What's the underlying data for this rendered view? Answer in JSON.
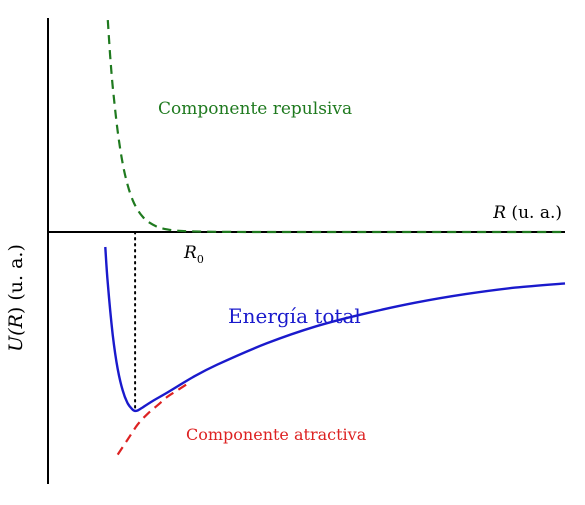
{
  "chart_data": {
    "type": "line",
    "title": "",
    "xlabel": {
      "var": "R",
      "unit": " (u. a.)"
    },
    "ylabel": {
      "prefix": "U(",
      "var": "R",
      "suffix": ") (u. a.)"
    },
    "xlim": [
      0,
      10
    ],
    "ylim": [
      -5,
      5
    ],
    "r0_label": {
      "base": "R",
      "sub": "0"
    },
    "r0_value": 1.35,
    "grid": false,
    "legend": "none",
    "series": [
      {
        "name": "Componente repulsiva",
        "style": "dashed",
        "color": "#1f7a1f",
        "x": [
          0.8,
          0.85,
          0.9,
          1.0,
          1.1,
          1.2,
          1.3,
          1.4,
          1.5,
          1.6,
          1.8,
          2.0,
          2.2,
          2.5,
          3.0,
          4.0,
          6.0,
          8.0,
          10.0
        ],
        "y": [
          4.95,
          4.1,
          3.4,
          2.35,
          1.6,
          1.1,
          0.75,
          0.52,
          0.36,
          0.25,
          0.12,
          0.06,
          0.03,
          0.015,
          0.005,
          0.0,
          0.0,
          0.0,
          0.0
        ]
      },
      {
        "name": "Energía total",
        "style": "solid",
        "color": "#1a1acc",
        "x": [
          0.75,
          0.8,
          0.9,
          1.0,
          1.1,
          1.2,
          1.3,
          1.35,
          1.4,
          1.5,
          1.7,
          2.0,
          2.5,
          3.0,
          4.0,
          5.0,
          6.0,
          7.0,
          8.0,
          9.0,
          10.0
        ],
        "y": [
          -0.35,
          -1.2,
          -2.4,
          -3.2,
          -3.7,
          -4.0,
          -4.15,
          -4.18,
          -4.17,
          -4.1,
          -3.95,
          -3.75,
          -3.4,
          -3.1,
          -2.6,
          -2.2,
          -1.9,
          -1.65,
          -1.45,
          -1.3,
          -1.2
        ]
      },
      {
        "name": "Componente atractiva",
        "style": "dashed",
        "color": "#dd2222",
        "x": [
          1.0,
          1.2,
          1.4,
          1.6,
          1.8,
          2.0,
          2.2,
          2.4
        ],
        "y": [
          -5.2,
          -4.85,
          -4.5,
          -4.25,
          -4.05,
          -3.85,
          -3.7,
          -3.55
        ]
      }
    ]
  }
}
